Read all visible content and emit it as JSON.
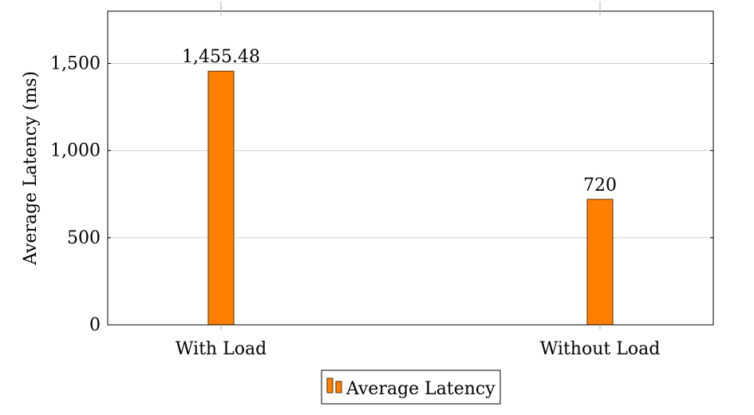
{
  "chart_data": {
    "type": "bar",
    "categories": [
      "With Load",
      "Without Load"
    ],
    "series": [
      {
        "name": "Average Latency",
        "values": [
          1455.48,
          720
        ]
      }
    ],
    "data_labels": [
      "1,455.48",
      "720"
    ],
    "xlabel": "",
    "ylabel": "Average Latency (ms)",
    "ylim": [
      0,
      1800
    ],
    "yticks": [
      0,
      500,
      1000,
      1500
    ],
    "ytick_labels": [
      "0",
      "500",
      "1,000",
      "1,500"
    ],
    "grid": true,
    "legend_position": "bottom-center",
    "colors": {
      "bar_fill": "#ff7f00",
      "bar_stroke": "#5a2d00",
      "grid": "#d0d0d0",
      "frame": "#000000"
    }
  }
}
